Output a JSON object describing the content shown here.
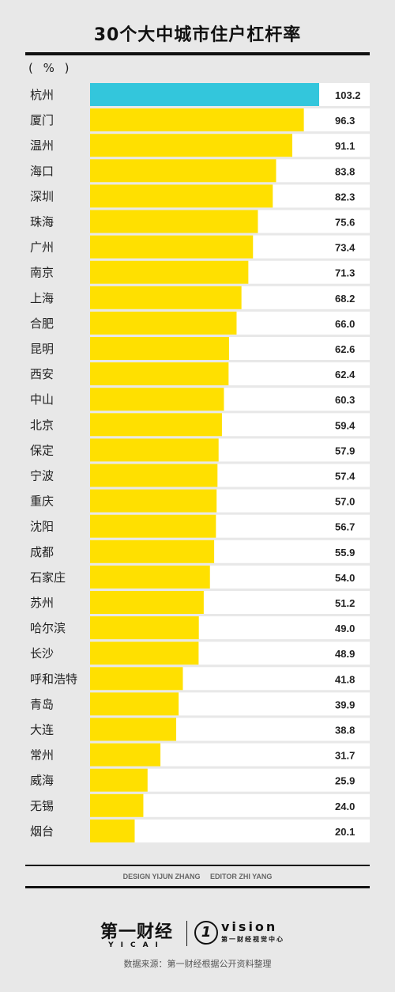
{
  "unit": "( % )",
  "credits": {
    "design": "DESIGN YIJUN ZHANG",
    "editor": "EDITOR ZHI YANG"
  },
  "logos": {
    "yicai_cn": "第一财经",
    "yicai_en": "YICAI",
    "vision_mark": "1",
    "vision_text": "vision",
    "vision_sub": "第一财经视觉中心"
  },
  "source": "数据来源：第一财经根据公开资料整理",
  "colors": {
    "highlight": "#33c6dc",
    "bar": "#ffe000",
    "row_bg": "#ffffff",
    "page_bg": "#e8e8e8"
  },
  "chart_data": {
    "type": "bar",
    "orientation": "horizontal",
    "title": "30个大中城市住户杠杆率",
    "ylabel": "( % )",
    "categories": [
      "杭州",
      "厦门",
      "温州",
      "海口",
      "深圳",
      "珠海",
      "广州",
      "南京",
      "上海",
      "合肥",
      "昆明",
      "西安",
      "中山",
      "北京",
      "保定",
      "宁波",
      "重庆",
      "沈阳",
      "成都",
      "石家庄",
      "苏州",
      "哈尔滨",
      "长沙",
      "呼和浩特",
      "青岛",
      "大连",
      "常州",
      "威海",
      "无锡",
      "烟台"
    ],
    "value_labels": [
      "103.2",
      "96.3",
      "91.1",
      "83.8",
      "82.3",
      "75.6",
      "73.4",
      "71.3",
      "68.2",
      "66.0",
      "62.6",
      "62.4",
      "60.3",
      "59.4",
      "57.9",
      "57.4",
      "57.0",
      "56.7",
      "55.9",
      "54.0",
      "51.2",
      "49.0",
      "48.9",
      "41.8",
      "39.9",
      "38.8",
      "31.7",
      "25.9",
      "24.0",
      "20.1"
    ],
    "values": [
      103.2,
      96.3,
      91.1,
      83.8,
      82.3,
      75.6,
      73.4,
      71.3,
      68.2,
      66.0,
      62.6,
      62.4,
      60.3,
      59.4,
      57.9,
      57.4,
      57.0,
      56.7,
      55.9,
      54.0,
      51.2,
      49.0,
      48.9,
      41.8,
      39.9,
      38.8,
      31.7,
      25.9,
      24.0,
      20.1
    ],
    "highlight_index": 0,
    "xlim": [
      0,
      103.2
    ],
    "grid": false,
    "legend": "none"
  }
}
